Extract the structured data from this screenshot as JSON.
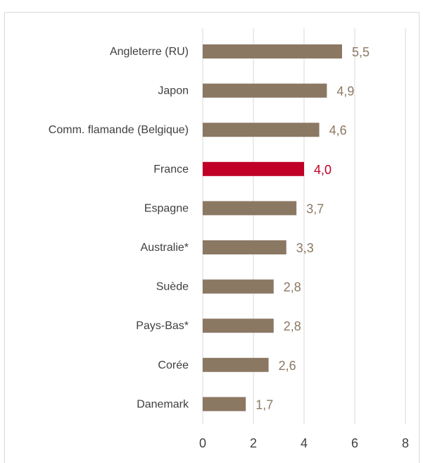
{
  "chart_data": {
    "type": "bar",
    "orientation": "horizontal",
    "categories": [
      "Angleterre (RU)",
      "Japon",
      "Comm. flamande (Belgique)",
      "France",
      "Espagne",
      "Australie*",
      "Suède",
      "Pays-Bas*",
      "Corée",
      "Danemark"
    ],
    "values": [
      5.5,
      4.9,
      4.6,
      4.0,
      3.7,
      3.3,
      2.8,
      2.8,
      2.6,
      1.7
    ],
    "value_labels": [
      "5,5",
      "4,9",
      "4,6",
      "4,0",
      "3,7",
      "3,3",
      "2,8",
      "2,8",
      "2,6",
      "1,7"
    ],
    "highlight_category": "France",
    "xlim": [
      0,
      8
    ],
    "x_ticks": [
      0,
      2,
      4,
      6,
      8
    ],
    "x_tick_labels": [
      "0",
      "2",
      "4",
      "6",
      "8"
    ],
    "grid": "vertical",
    "legend": "none",
    "colors": {
      "bar": "#8b7863",
      "highlight": "#c00027",
      "label": "#8b7863",
      "highlight_label": "#c00027",
      "grid": "#d9d9d9"
    }
  }
}
